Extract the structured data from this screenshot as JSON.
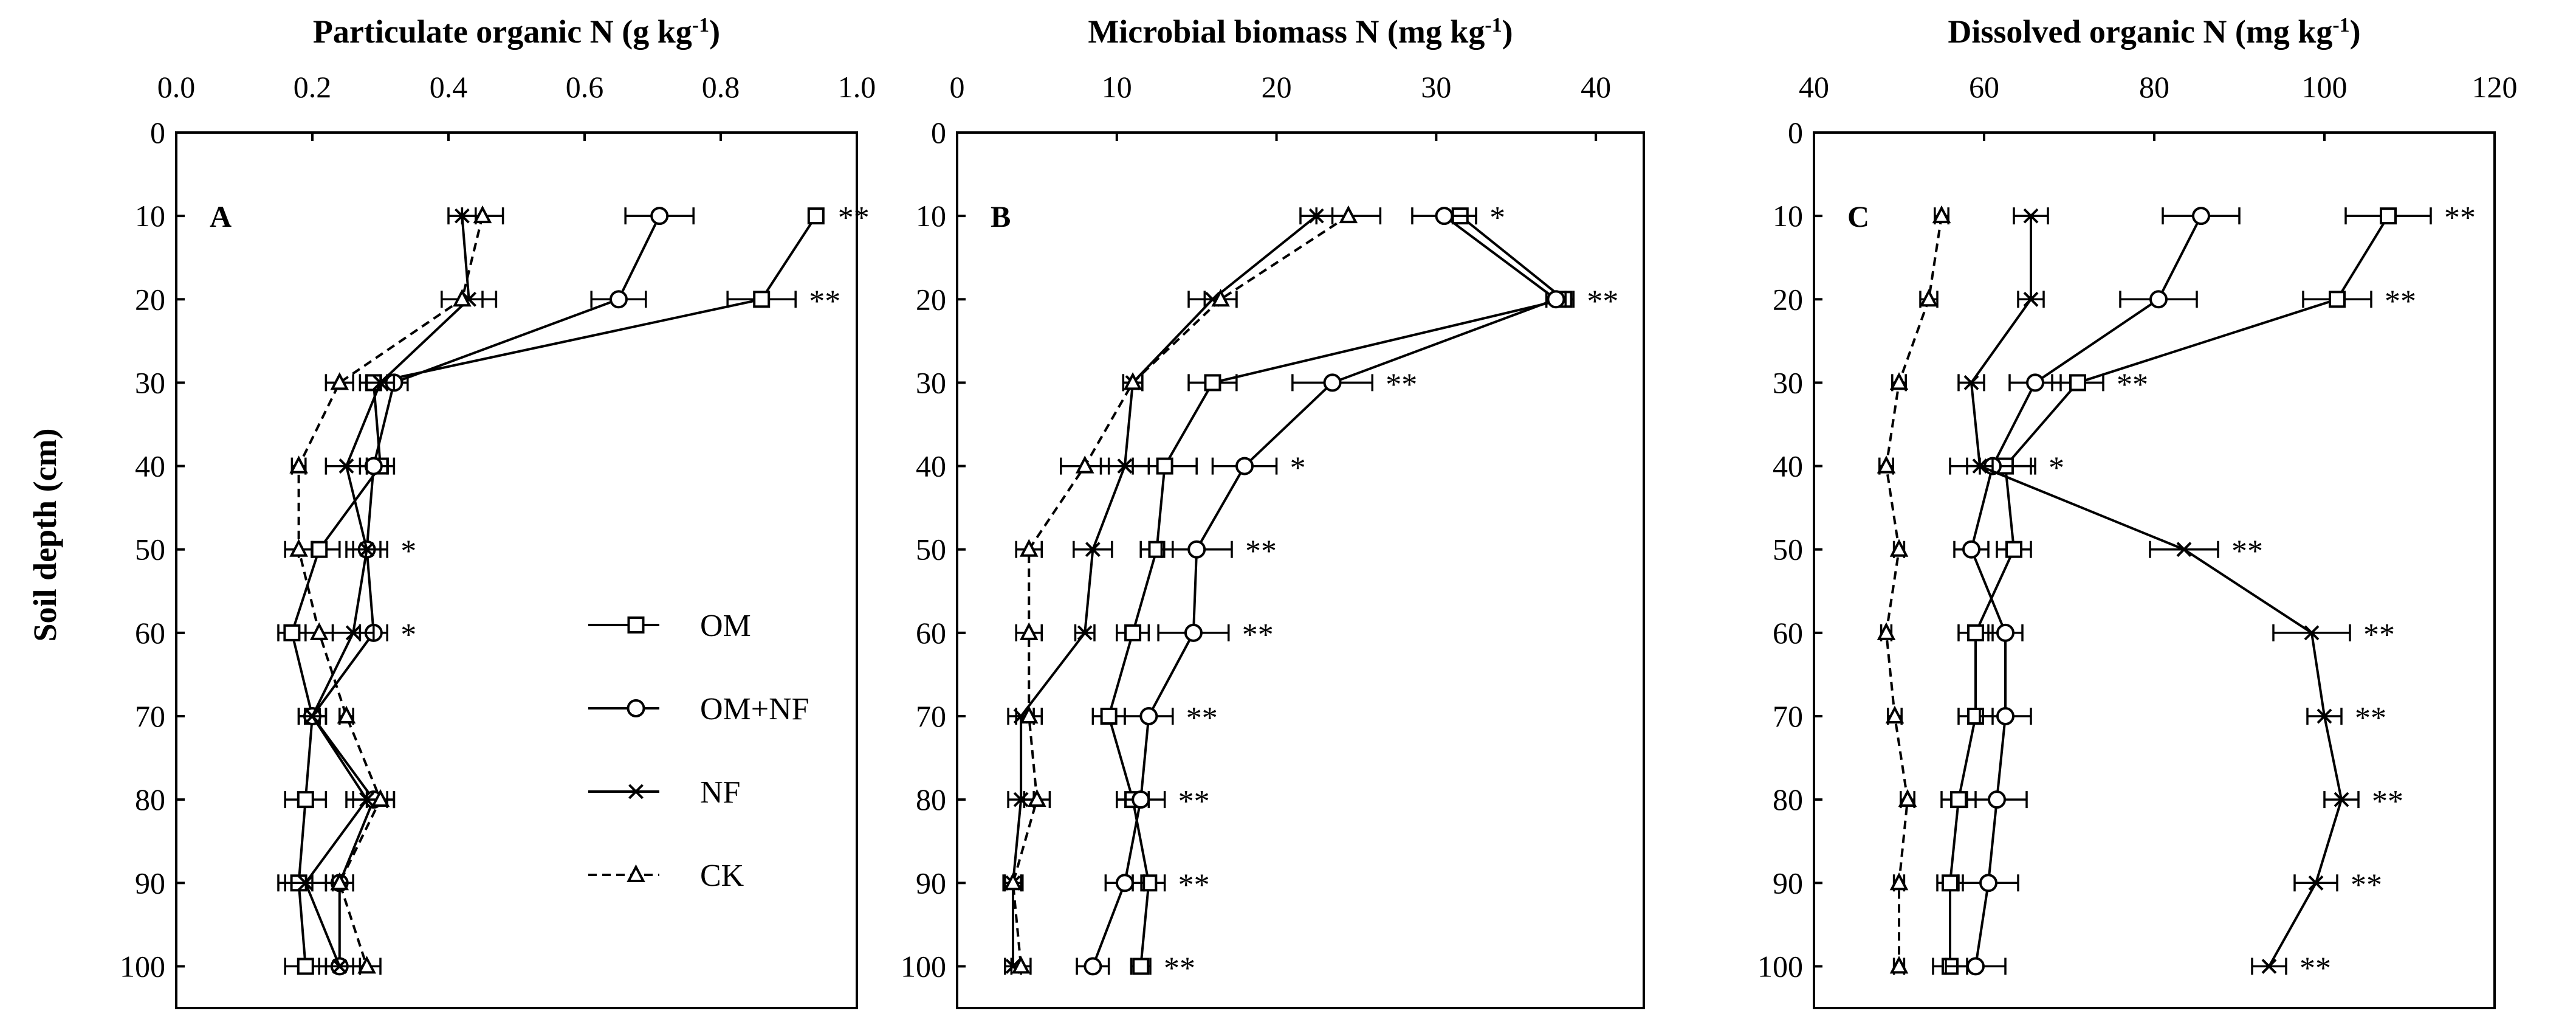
{
  "chart_data": {
    "type": "line",
    "ylabel": "Soil depth (cm)",
    "depths": [
      10,
      20,
      30,
      40,
      50,
      60,
      70,
      80,
      90,
      100
    ],
    "depth_ticks": [
      0,
      10,
      20,
      30,
      40,
      50,
      60,
      70,
      80,
      90,
      100
    ],
    "ylim": [
      0,
      105
    ],
    "legend": [
      {
        "key": "OM",
        "label": "OM"
      },
      {
        "key": "OMNF",
        "label": "OM+NF"
      },
      {
        "key": "NF",
        "label": "NF"
      },
      {
        "key": "CK",
        "label": "CK"
      }
    ],
    "panels": [
      {
        "id": "A",
        "label": "A",
        "title": "Particulate organic N (g kg",
        "title_sup": "-1",
        "title_end": ")",
        "xlim": [
          0,
          1.0
        ],
        "xticks": [
          "0.0",
          "0.2",
          "0.4",
          "0.6",
          "0.8",
          "1.0"
        ],
        "xtick_values": [
          0,
          0.2,
          0.4,
          0.6,
          0.8,
          1.0
        ],
        "series": [
          {
            "name": "OM",
            "values": [
              0.94,
              0.86,
              0.29,
              0.3,
              0.21,
              0.17,
              0.2,
              0.19,
              0.18,
              0.19
            ],
            "err": [
              0.0,
              0.05,
              0.02,
              0.02,
              0.03,
              0.02,
              0.02,
              0.03,
              0.02,
              0.03
            ]
          },
          {
            "name": "OM+NF",
            "values": [
              0.71,
              0.65,
              0.32,
              0.29,
              0.28,
              0.29,
              0.2,
              0.29,
              0.24,
              0.24
            ],
            "err": [
              0.05,
              0.04,
              0.02,
              0.02,
              0.02,
              0.02,
              0.02,
              0.03,
              0.02,
              0.02
            ]
          },
          {
            "name": "NF",
            "values": [
              0.42,
              0.43,
              0.3,
              0.25,
              0.28,
              0.26,
              0.2,
              0.28,
              0.19,
              0.24
            ],
            "err": [
              0.02,
              0.04,
              0.02,
              0.03,
              0.03,
              0.03,
              0.02,
              0.03,
              0.04,
              0.03
            ]
          },
          {
            "name": "CK",
            "values": [
              0.45,
              0.42,
              0.24,
              0.18,
              0.18,
              0.21,
              0.25,
              0.3,
              0.24,
              0.28
            ],
            "err": [
              0.03,
              0.03,
              0.02,
              0.01,
              0.02,
              0.02,
              0.01,
              0.02,
              0.02,
              0.02
            ]
          }
        ],
        "significance": [
          "**",
          "**",
          "",
          "",
          "*",
          "*",
          "",
          "",
          "",
          ""
        ]
      },
      {
        "id": "B",
        "label": "B",
        "title": "Microbial biomass N (mg kg",
        "title_sup": "-1",
        "title_end": ")",
        "xlim": [
          0,
          43
        ],
        "xticks": [
          "0",
          "10",
          "20",
          "30",
          "40"
        ],
        "xtick_values": [
          0,
          10,
          20,
          30,
          40
        ],
        "series": [
          {
            "name": "OM",
            "values": [
              31.5,
              38.0,
              16.0,
              13.0,
              12.5,
              11.0,
              9.5,
              11.0,
              12.0,
              11.5
            ],
            "err": [
              1.0,
              0.6,
              1.5,
              2.0,
              1.0,
              1.0,
              1.0,
              1.0,
              1.0,
              0.6
            ]
          },
          {
            "name": "OM+NF",
            "values": [
              30.5,
              37.5,
              23.5,
              18.0,
              15.0,
              14.8,
              12.0,
              11.5,
              10.5,
              8.5
            ],
            "err": [
              2.0,
              0.6,
              2.5,
              2.0,
              2.2,
              2.2,
              1.5,
              1.5,
              1.2,
              1.0
            ]
          },
          {
            "name": "NF",
            "values": [
              22.5,
              16.0,
              11.0,
              10.5,
              8.5,
              8.0,
              4.0,
              4.0,
              3.5,
              3.5
            ],
            "err": [
              1.0,
              1.5,
              0.6,
              1.5,
              1.2,
              0.6,
              0.8,
              0.8,
              0.5,
              0.5
            ]
          },
          {
            "name": "CK",
            "values": [
              24.5,
              16.5,
              11.0,
              8.0,
              4.5,
              4.5,
              4.5,
              5.0,
              3.5,
              4.0
            ],
            "err": [
              2.0,
              1.0,
              0.6,
              1.5,
              0.8,
              0.8,
              0.8,
              0.8,
              0.6,
              0.6
            ]
          }
        ],
        "significance": [
          "*",
          "**",
          "**",
          "*",
          "**",
          "**",
          "**",
          "**",
          "**",
          "**"
        ],
        "sig_light_last": true
      },
      {
        "id": "C",
        "label": "C",
        "title": "Dissolved organic N (mg kg",
        "title_sup": "-1",
        "title_end": ")",
        "xlim": [
          40,
          120
        ],
        "xticks": [
          "40",
          "60",
          "80",
          "100",
          "120"
        ],
        "xtick_values": [
          40,
          60,
          80,
          100,
          120
        ],
        "series": [
          {
            "name": "OM",
            "values": [
              107.5,
              101.5,
              71.0,
              62.5,
              63.5,
              59.0,
              59.0,
              57.0,
              56.0,
              56.0
            ],
            "err": [
              5.0,
              4.0,
              3.0,
              3.0,
              2.0,
              2.0,
              2.0,
              2.0,
              1.5,
              2.0
            ]
          },
          {
            "name": "OM+NF",
            "values": [
              85.5,
              80.5,
              66.0,
              61.0,
              58.5,
              62.5,
              62.5,
              61.5,
              60.5,
              59.0
            ],
            "err": [
              4.5,
              4.5,
              3.0,
              5.0,
              2.0,
              2.0,
              3.0,
              3.5,
              3.5,
              3.5
            ]
          },
          {
            "name": "NF",
            "values": [
              65.5,
              65.5,
              58.5,
              59.5,
              83.5,
              98.5,
              100.0,
              102.0,
              99.0,
              93.5
            ],
            "err": [
              2.0,
              1.5,
              1.5,
              1.5,
              4.0,
              4.5,
              2.0,
              2.0,
              2.5,
              2.0
            ]
          },
          {
            "name": "CK",
            "values": [
              55.0,
              53.5,
              50.0,
              48.5,
              50.0,
              48.5,
              49.5,
              51.0,
              50.0,
              50.0
            ],
            "err": [
              0.8,
              1.0,
              0.8,
              0.8,
              0.6,
              0.6,
              0.8,
              0.8,
              0.6,
              0.6
            ]
          }
        ],
        "significance": [
          "**",
          "**",
          "**",
          "*",
          "**",
          "**",
          "**",
          "**",
          "**",
          "**"
        ]
      }
    ]
  }
}
